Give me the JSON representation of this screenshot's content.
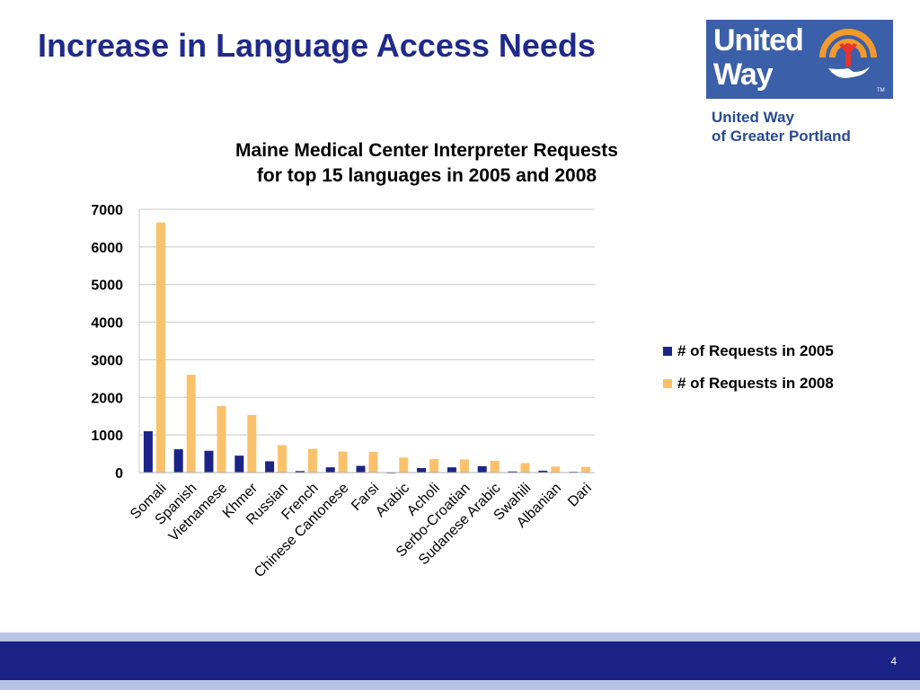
{
  "slide": {
    "title": "Increase in Language Access Needs",
    "page_number": "4"
  },
  "logo": {
    "line1": "United",
    "line2": "Way",
    "tm": "TM",
    "org_line1": "United Way",
    "org_line2": "of Greater Portland"
  },
  "colors": {
    "title": "#1f2a8a",
    "series_2005": "#1b2486",
    "series_2008": "#fac16b",
    "footer_bar": "#1b2486",
    "footer_band": "#b8c2e4",
    "logo_bg": "#3b5fa8"
  },
  "chart_data": {
    "type": "bar",
    "title_line1": "Maine Medical Center Interpreter Requests",
    "title_line2": "for top 15 languages in 2005 and 2008",
    "categories": [
      "Somali",
      "Spanish",
      "Vietnamese",
      "Khmer",
      "Russian",
      "French",
      "Chinese Cantonese",
      "Farsi",
      "Arabic",
      "Acholi",
      "Serbo-Croatian",
      "Sudanese Arabic",
      "Swahili",
      "Albanian",
      "Dari"
    ],
    "series": [
      {
        "name": "# of Requests in 2005",
        "values": [
          1100,
          620,
          580,
          450,
          300,
          40,
          140,
          180,
          0,
          120,
          140,
          170,
          30,
          50,
          20
        ]
      },
      {
        "name": "# of Requests in 2008",
        "values": [
          6650,
          2600,
          1770,
          1530,
          730,
          630,
          560,
          550,
          400,
          360,
          350,
          310,
          250,
          160,
          150
        ]
      }
    ],
    "ylim": [
      0,
      7000
    ],
    "yticks": [
      "0",
      "1000",
      "2000",
      "3000",
      "4000",
      "5000",
      "6000",
      "7000"
    ],
    "grid": true,
    "legend_position": "right"
  }
}
